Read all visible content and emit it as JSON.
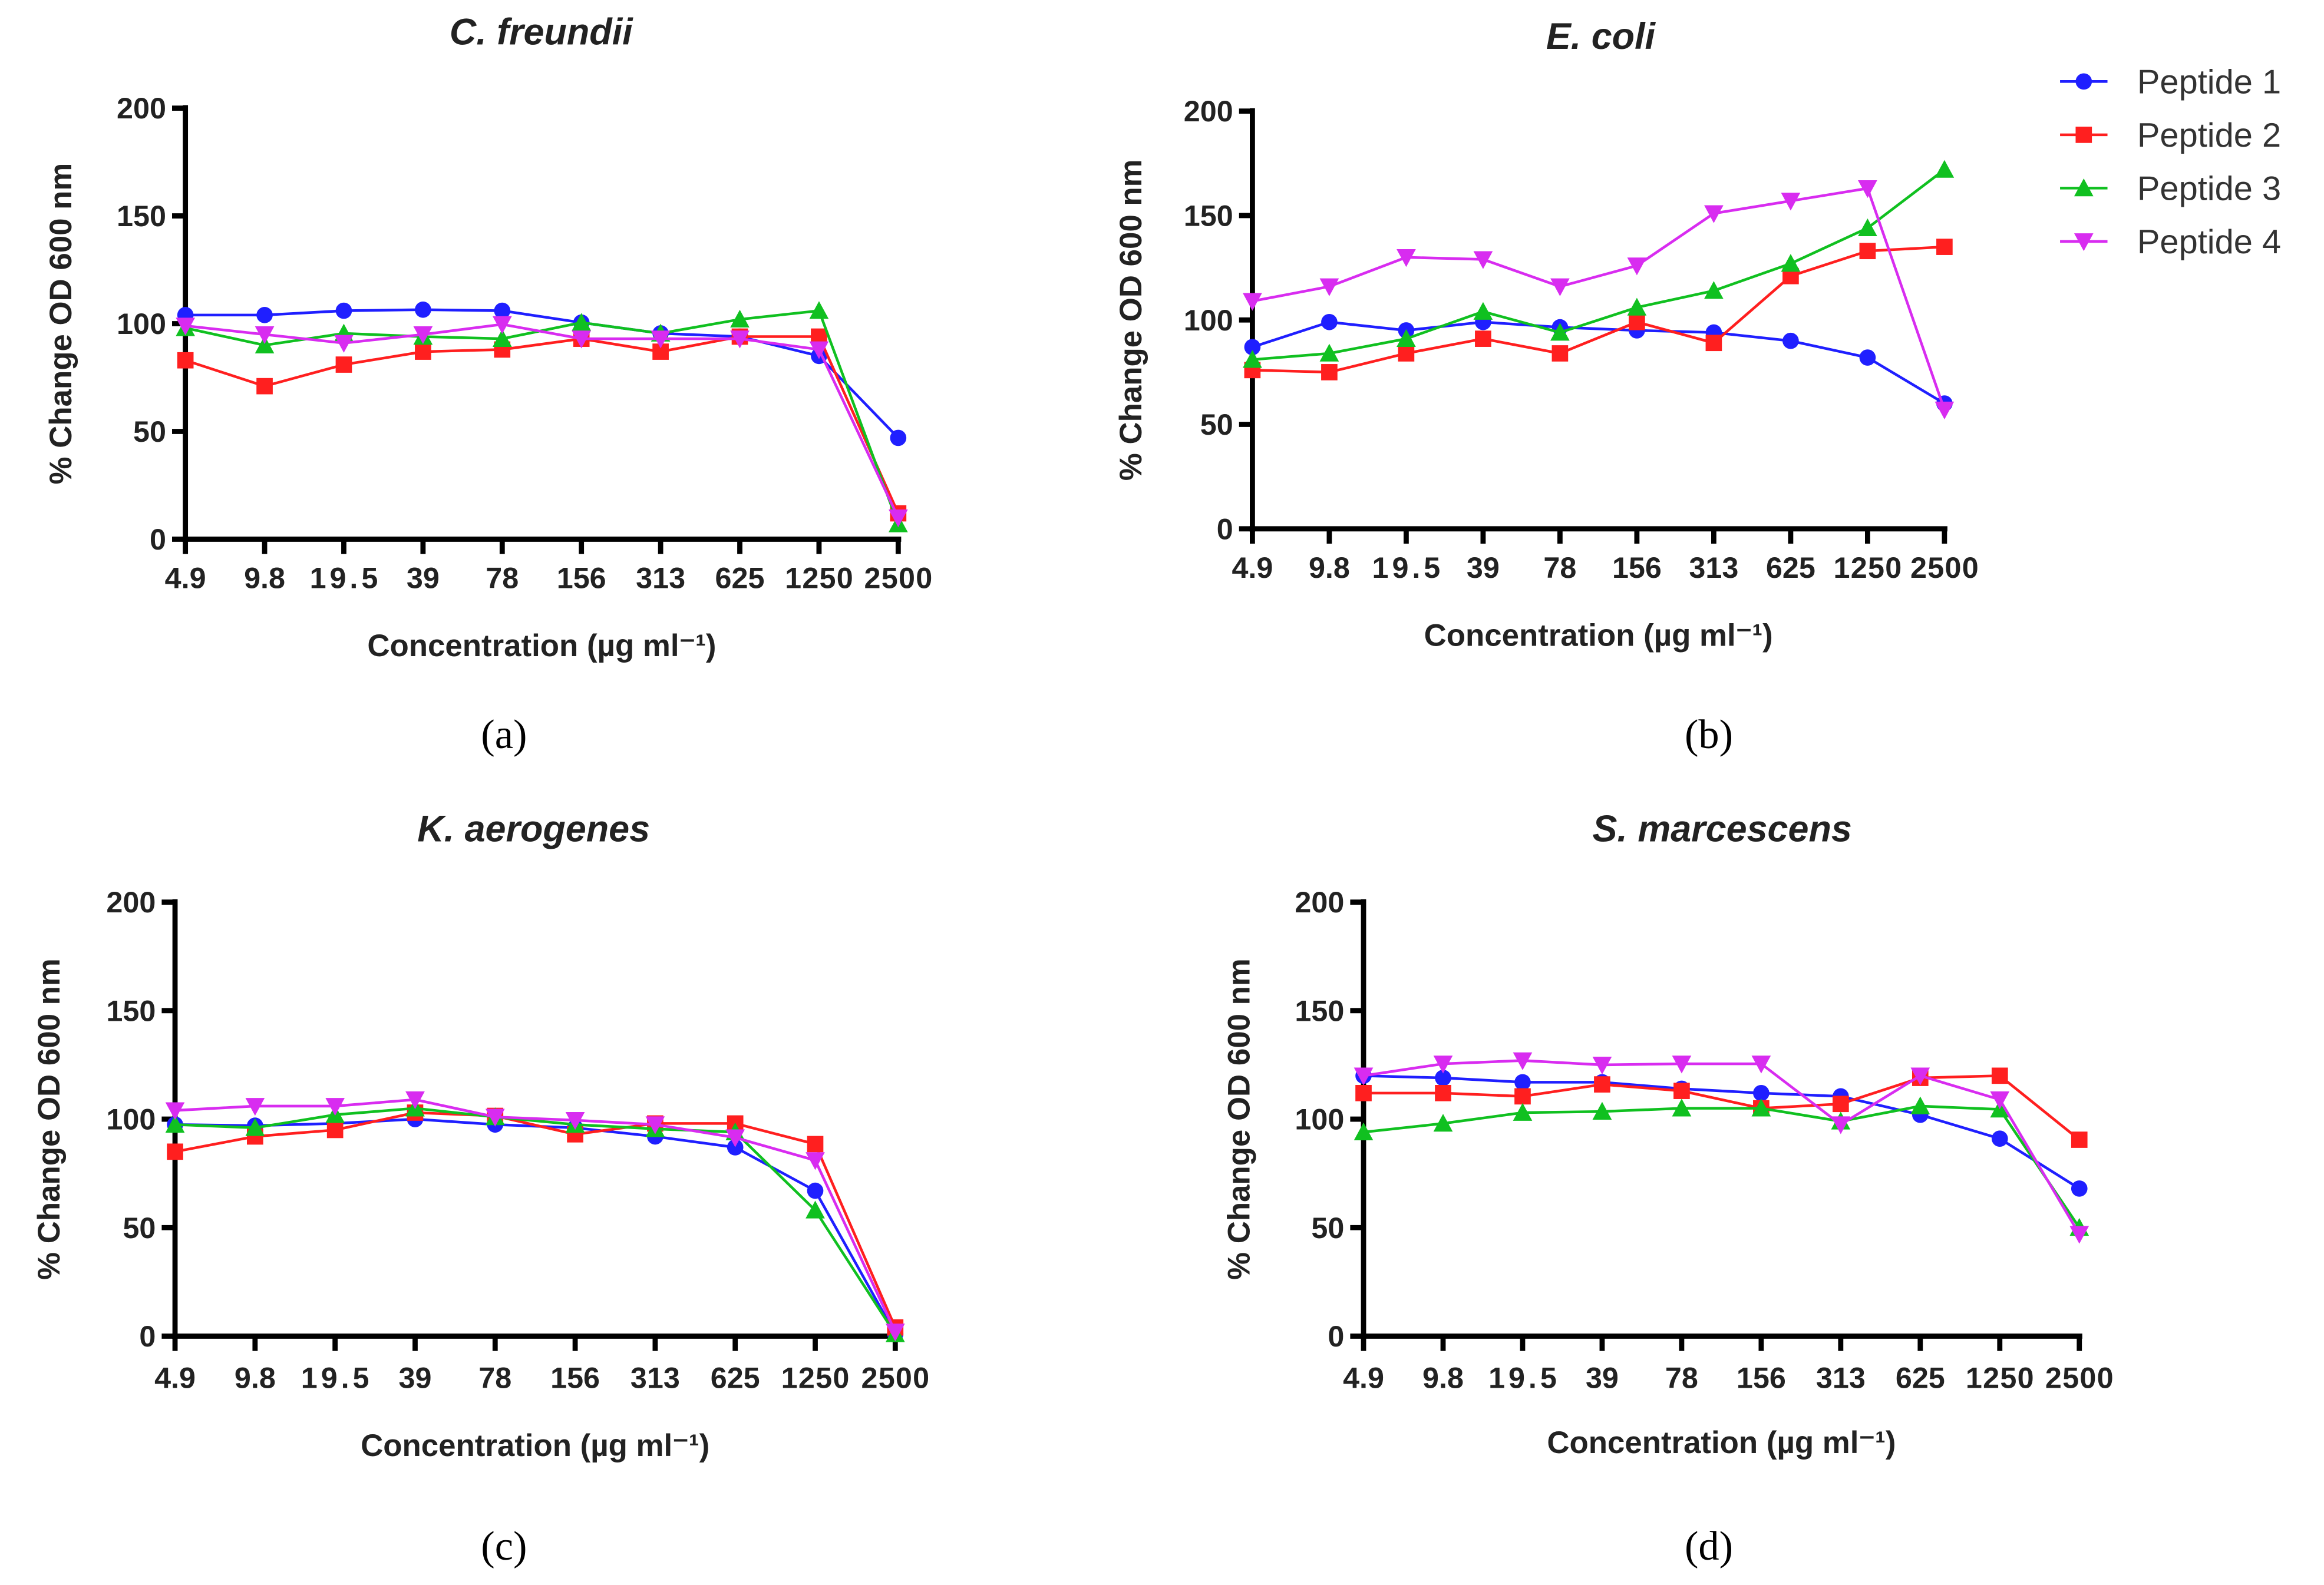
{
  "chart_data": [
    {
      "type": "line",
      "panel_label": "(a)",
      "title": "C. freundii",
      "xlabel": "Concentration (µg ml⁻¹)",
      "ylabel": "% Change OD 600 nm",
      "categories": [
        "4.9",
        "9.8",
        "19.5",
        "39",
        "78",
        "156",
        "313",
        "625",
        "1250",
        "2500"
      ],
      "ylim": [
        0,
        200
      ],
      "yticks": [
        0,
        50,
        100,
        150,
        200
      ],
      "grid": false,
      "series": [
        {
          "name": "Peptide 1",
          "values": [
            104,
            104,
            106,
            106.5,
            106,
            100.5,
            95.5,
            94,
            85,
            47
          ]
        },
        {
          "name": "Peptide 2",
          "values": [
            83,
            71,
            81,
            87,
            88,
            93,
            87,
            94,
            94,
            12
          ]
        },
        {
          "name": "Peptide 3",
          "values": [
            98,
            90,
            95.5,
            94,
            93,
            100.5,
            95.5,
            102,
            106,
            7
          ]
        },
        {
          "name": "Peptide 4",
          "values": [
            99,
            95,
            91,
            95,
            99.7,
            93,
            93,
            93,
            88,
            10
          ]
        }
      ]
    },
    {
      "type": "line",
      "panel_label": "(b)",
      "title": "E. coli",
      "xlabel": "Concentration (µg ml⁻¹)",
      "ylabel": "% Change OD 600 nm",
      "categories": [
        "4.9",
        "9.8",
        "19.5",
        "39",
        "78",
        "156",
        "313",
        "625",
        "1250",
        "2500"
      ],
      "ylim": [
        0,
        200
      ],
      "yticks": [
        0,
        50,
        100,
        150,
        200
      ],
      "grid": false,
      "series": [
        {
          "name": "Peptide 1",
          "values": [
            87,
            99,
            95,
            99,
            96.5,
            95,
            94,
            90,
            82,
            60
          ]
        },
        {
          "name": "Peptide 2",
          "values": [
            76,
            75,
            84,
            91,
            84,
            99,
            89,
            121,
            133,
            135
          ]
        },
        {
          "name": "Peptide 3",
          "values": [
            81,
            84,
            91,
            104,
            94,
            106,
            114,
            127,
            144,
            172
          ]
        },
        {
          "name": "Peptide 4",
          "values": [
            109,
            116,
            130,
            129,
            116,
            126,
            151,
            157,
            163,
            57
          ]
        }
      ]
    },
    {
      "type": "line",
      "panel_label": "(c)",
      "title": "K. aerogenes",
      "xlabel": "Concentration (µg ml⁻¹)",
      "ylabel": "% Change OD 600 nm",
      "categories": [
        "4.9",
        "9.8",
        "19.5",
        "39",
        "78",
        "156",
        "313",
        "625",
        "1250",
        "2500"
      ],
      "ylim": [
        0,
        200
      ],
      "yticks": [
        0,
        50,
        100,
        150,
        200
      ],
      "grid": false,
      "series": [
        {
          "name": "Peptide 1",
          "values": [
            97.5,
            97,
            98,
            100,
            97.5,
            96,
            92,
            87,
            67,
            1
          ]
        },
        {
          "name": "Peptide 2",
          "values": [
            85,
            92,
            95,
            103,
            101.5,
            93,
            98,
            98,
            88.5,
            4
          ]
        },
        {
          "name": "Peptide 3",
          "values": [
            97.5,
            96,
            102,
            105,
            101,
            97.5,
            95.5,
            94,
            58,
            1
          ]
        },
        {
          "name": "Peptide 4",
          "values": [
            104,
            106,
            106,
            109,
            101,
            99.5,
            97.5,
            91.5,
            81,
            2
          ]
        }
      ]
    },
    {
      "type": "line",
      "panel_label": "(d)",
      "title": "S. marcescens",
      "xlabel": "Concentration (µg ml⁻¹)",
      "ylabel": "% Change OD 600 nm",
      "categories": [
        "4.9",
        "9.8",
        "19.5",
        "39",
        "78",
        "156",
        "313",
        "625",
        "1250",
        "2500"
      ],
      "ylim": [
        0,
        200
      ],
      "yticks": [
        0,
        50,
        100,
        150,
        200
      ],
      "grid": false,
      "series": [
        {
          "name": "Peptide 1",
          "values": [
            120,
            119,
            117,
            117,
            114,
            112,
            110.5,
            102,
            91,
            68
          ]
        },
        {
          "name": "Peptide 2",
          "values": [
            112,
            112,
            110.5,
            116,
            113,
            105,
            107,
            119,
            120,
            90.5
          ]
        },
        {
          "name": "Peptide 3",
          "values": [
            94,
            98,
            103,
            103.5,
            105,
            105,
            99,
            106,
            104.5,
            50
          ]
        },
        {
          "name": "Peptide 4",
          "values": [
            120,
            125.5,
            127,
            125,
            125.5,
            125.5,
            97.5,
            120,
            109,
            47
          ]
        }
      ]
    }
  ],
  "legend": {
    "placement": "top-right",
    "items": [
      {
        "name": "Peptide 1",
        "color": "#1f1fff",
        "marker": "circle"
      },
      {
        "name": "Peptide 2",
        "color": "#ff1f1f",
        "marker": "square"
      },
      {
        "name": "Peptide 3",
        "color": "#10c020",
        "marker": "triangle-up"
      },
      {
        "name": "Peptide 4",
        "color": "#d82cf0",
        "marker": "triangle-down"
      }
    ]
  }
}
